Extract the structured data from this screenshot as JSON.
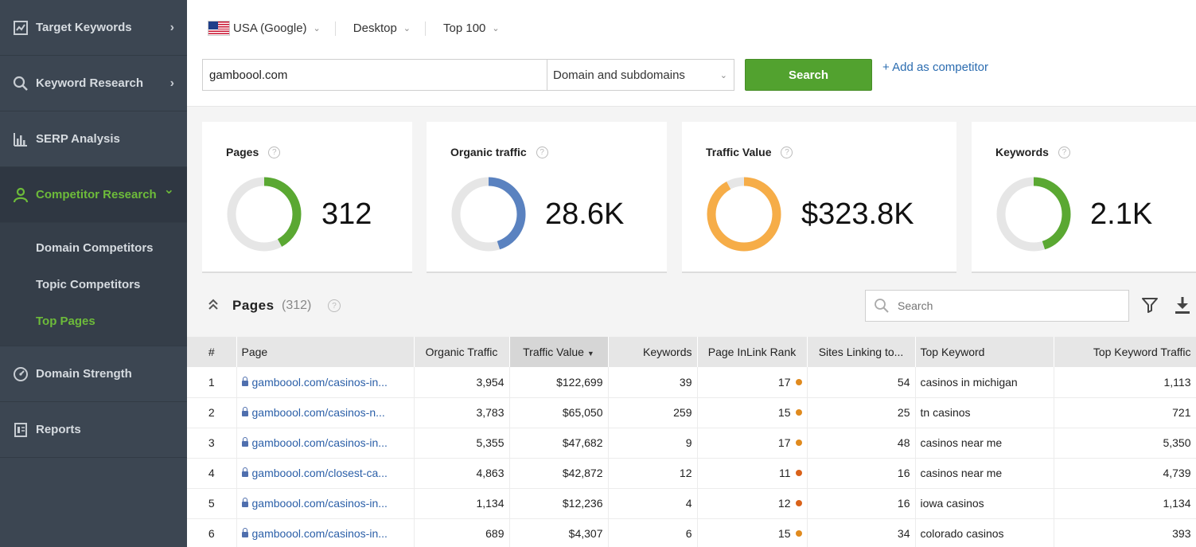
{
  "sidebar": {
    "items": [
      {
        "label": "Target Keywords",
        "icon": "trend-chart-icon",
        "chevron": "›"
      },
      {
        "label": "Keyword Research",
        "icon": "search-icon",
        "chevron": "›"
      },
      {
        "label": "SERP Analysis",
        "icon": "bar-chart-icon",
        "chevron": ""
      },
      {
        "label": "Competitor Research",
        "icon": "user-icon",
        "chevron": "⌄"
      }
    ],
    "subitems": [
      {
        "label": "Domain Competitors"
      },
      {
        "label": "Topic Competitors"
      },
      {
        "label": "Top Pages"
      }
    ],
    "bottom_items": [
      {
        "label": "Domain Strength",
        "icon": "gauge-icon"
      },
      {
        "label": "Reports",
        "icon": "report-icon"
      }
    ],
    "active_color": "#6dbb3a"
  },
  "toolbar": {
    "region": "USA (Google)",
    "device": "Desktop",
    "depth": "Top 100",
    "domain_value": "gamboool.com",
    "scope": "Domain and subdomains",
    "search_label": "Search",
    "add_competitor": "+ Add as competitor"
  },
  "metrics": [
    {
      "title": "Pages",
      "value": "312",
      "fraction": 0.42,
      "color": "#5aa832"
    },
    {
      "title": "Organic traffic",
      "value": "28.6K",
      "fraction": 0.45,
      "color": "#5a82c0"
    },
    {
      "title": "Traffic Value",
      "value": "$323.8K",
      "fraction": 0.92,
      "color": "#f6ad48"
    },
    {
      "title": "Keywords",
      "value": "2.1K",
      "fraction": 0.45,
      "color": "#5aa832"
    }
  ],
  "section": {
    "title": "Pages",
    "count": "(312)",
    "search_placeholder": "Search"
  },
  "table": {
    "columns": [
      "#",
      "Page",
      "Organic Traffic",
      "Traffic Value",
      "Keywords",
      "Page InLink Rank",
      "Sites Linking to...",
      "Top Keyword",
      "Top Keyword Traffic"
    ],
    "sort_indicator": "▼",
    "rows": [
      {
        "n": "1",
        "page": "gamboool.com/casinos-in...",
        "organic": "3,954",
        "value": "$122,699",
        "keywords": "39",
        "rank": "17",
        "rank_color": "#e08a1e",
        "sites": "54",
        "top_keyword": "casinos in michigan",
        "top_traffic": "1,113"
      },
      {
        "n": "2",
        "page": "gamboool.com/casinos-n...",
        "organic": "3,783",
        "value": "$65,050",
        "keywords": "259",
        "rank": "15",
        "rank_color": "#e08a1e",
        "sites": "25",
        "top_keyword": "tn casinos",
        "top_traffic": "721"
      },
      {
        "n": "3",
        "page": "gamboool.com/casinos-in...",
        "organic": "5,355",
        "value": "$47,682",
        "keywords": "9",
        "rank": "17",
        "rank_color": "#e08a1e",
        "sites": "48",
        "top_keyword": "casinos near me",
        "top_traffic": "5,350"
      },
      {
        "n": "4",
        "page": "gamboool.com/closest-ca...",
        "organic": "4,863",
        "value": "$42,872",
        "keywords": "12",
        "rank": "11",
        "rank_color": "#d9621a",
        "sites": "16",
        "top_keyword": "casinos near me",
        "top_traffic": "4,739"
      },
      {
        "n": "5",
        "page": "gamboool.com/casinos-in...",
        "organic": "1,134",
        "value": "$12,236",
        "keywords": "4",
        "rank": "12",
        "rank_color": "#d9621a",
        "sites": "16",
        "top_keyword": "iowa casinos",
        "top_traffic": "1,134"
      },
      {
        "n": "6",
        "page": "gamboool.com/casinos-in...",
        "organic": "689",
        "value": "$4,307",
        "keywords": "6",
        "rank": "15",
        "rank_color": "#e08a1e",
        "sites": "34",
        "top_keyword": "colorado casinos",
        "top_traffic": "393"
      }
    ]
  }
}
